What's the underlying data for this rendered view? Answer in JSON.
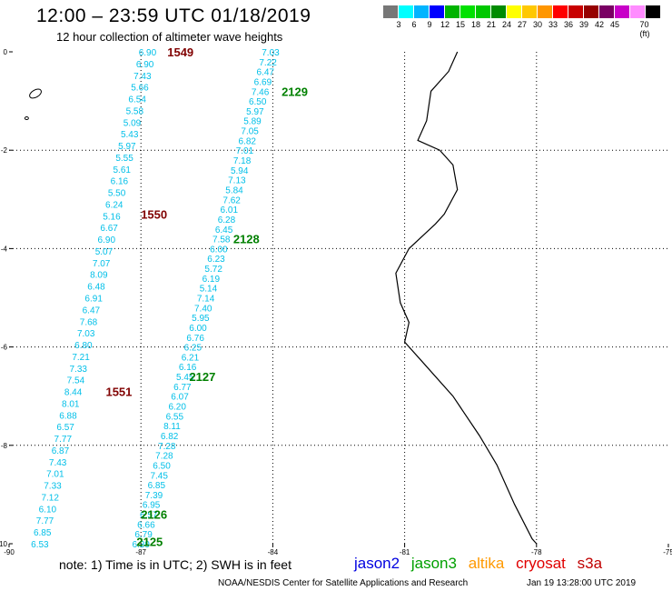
{
  "title": "12:00 – 23:59 UTC 01/18/2019",
  "subtitle": "12 hour collection of altimeter wave heights",
  "scale": {
    "colors": [
      "#777777",
      "#00ffff",
      "#00b4ff",
      "#0000ff",
      "#00b400",
      "#00e100",
      "#00c800",
      "#008c00",
      "#ffff00",
      "#ffc800",
      "#ff9600",
      "#ff0000",
      "#c80000",
      "#960000",
      "#7a0064",
      "#c800c8",
      "#ff8cff",
      "#000000"
    ],
    "labels": [
      "3",
      "6",
      "9",
      "12",
      "15",
      "18",
      "21",
      "24",
      "27",
      "30",
      "33",
      "36",
      "39",
      "42",
      "45",
      "70 (ft)"
    ]
  },
  "axes": {
    "lon_ticks": [
      "-90",
      "-87",
      "-84",
      "-81",
      "-78",
      "-75"
    ],
    "lat_ticks": [
      "0",
      "-2",
      "-4",
      "-6",
      "-8",
      "-10"
    ]
  },
  "track1": {
    "lon_start": -86.85,
    "lon_end": -89.3,
    "values": [
      "6.90",
      "6.90",
      "7.43",
      "5.66",
      "6.54",
      "5.58",
      "5.09",
      "5.43",
      "5.97",
      "5.55",
      "5.61",
      "6.16",
      "5.50",
      "6.24",
      "5.16",
      "6.67",
      "6.90",
      "5.07",
      "7.07",
      "8.09",
      "6.48",
      "6.91",
      "6.47",
      "7.68",
      "7.03",
      "6.80",
      "7.21",
      "7.33",
      "7.54",
      "8.44",
      "8.01",
      "6.88",
      "6.57",
      "7.77",
      "6.87",
      "7.43",
      "7.01",
      "7.33",
      "7.12",
      "6.10",
      "7.77",
      "6.85",
      "6.53"
    ],
    "passes": [
      {
        "label": "1549",
        "lat": 0.0,
        "lon": -86.4
      },
      {
        "label": "1550",
        "lat": -3.3,
        "lon": -87.0
      },
      {
        "label": "1551",
        "lat": -6.9,
        "lon": -87.8
      }
    ]
  },
  "track2": {
    "lon_start": -84.05,
    "lon_end": -87.0,
    "values": [
      "7.03",
      "7.22",
      "6.47",
      "6.69",
      "7.46",
      "6.50",
      "5.97",
      "5.89",
      "7.05",
      "6.82",
      "7.01",
      "7.18",
      "5.94",
      "7.13",
      "5.84",
      "7.62",
      "6.01",
      "6.28",
      "6.45",
      "7.58",
      "6.00",
      "6.23",
      "5.72",
      "6.19",
      "5.14",
      "7.14",
      "7.40",
      "5.95",
      "6.00",
      "6.76",
      "6.25",
      "6.21",
      "6.16",
      "5.45",
      "6.77",
      "6.07",
      "6.20",
      "6.55",
      "8.11",
      "6.82",
      "7.28",
      "7.28",
      "6.50",
      "7.45",
      "6.85",
      "7.39",
      "6.95",
      "6.57",
      "6.66",
      "6.79",
      "6.39"
    ],
    "passes": [
      {
        "label": "2129",
        "lat": -0.8,
        "lon": -83.8
      },
      {
        "label": "2128",
        "lat": -3.8,
        "lon": -84.9
      },
      {
        "label": "2127",
        "lat": -6.6,
        "lon": -85.9
      },
      {
        "label": "2126",
        "lat": -9.4,
        "lon": -87.0
      },
      {
        "label": "2125",
        "lat": -9.95,
        "lon": -87.1
      }
    ]
  },
  "colors": {
    "track1_text": "#00bfe8",
    "track2_text": "#00bfe8",
    "pass_jason2": "#800000",
    "pass_jason3": "#008000",
    "coast": "#000000",
    "grid": "#000000"
  },
  "note": "note:  1) Time is in UTC;  2) SWH is in feet",
  "legend": [
    {
      "name": "jason2",
      "color": "#0000e0"
    },
    {
      "name": "jason3",
      "color": "#00a000"
    },
    {
      "name": "altika",
      "color": "#ff9900"
    },
    {
      "name": "cryosat",
      "color": "#e00000"
    },
    {
      "name": "s3a",
      "color": "#c00000"
    }
  ],
  "credit": "NOAA/NESDIS Center for Satellite Applications and Research",
  "stamp": "Jan 19 13:28:00 UTC 2019"
}
